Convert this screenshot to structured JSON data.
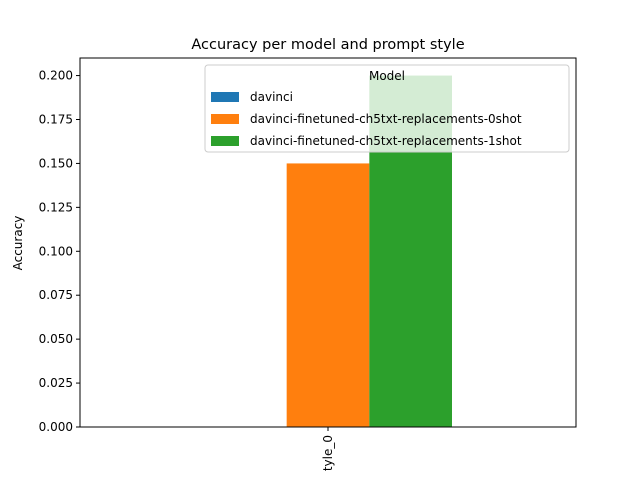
{
  "chart_data": {
    "type": "bar",
    "title": "Accuracy per model and prompt style",
    "xlabel": "",
    "ylabel": "Accuracy",
    "categories": [
      "tyle_0"
    ],
    "ylim": [
      0,
      0.21
    ],
    "yticks": [
      0.0,
      0.025,
      0.05,
      0.075,
      0.1,
      0.125,
      0.15,
      0.175,
      0.2
    ],
    "ytick_labels": [
      "0.000",
      "0.025",
      "0.050",
      "0.075",
      "0.100",
      "0.125",
      "0.150",
      "0.175",
      "0.200"
    ],
    "grid": false,
    "legend": {
      "title": "Model",
      "placement": "top-right"
    },
    "series": [
      {
        "name": "davinci",
        "values": [
          0.0
        ],
        "color": "#1f77b4"
      },
      {
        "name": "davinci-finetuned-ch5txt-replacements-0shot",
        "values": [
          0.15
        ],
        "color": "#ff7f0e"
      },
      {
        "name": "davinci-finetuned-ch5txt-replacements-1shot",
        "values": [
          0.2
        ],
        "color": "#2ca02c"
      }
    ]
  }
}
